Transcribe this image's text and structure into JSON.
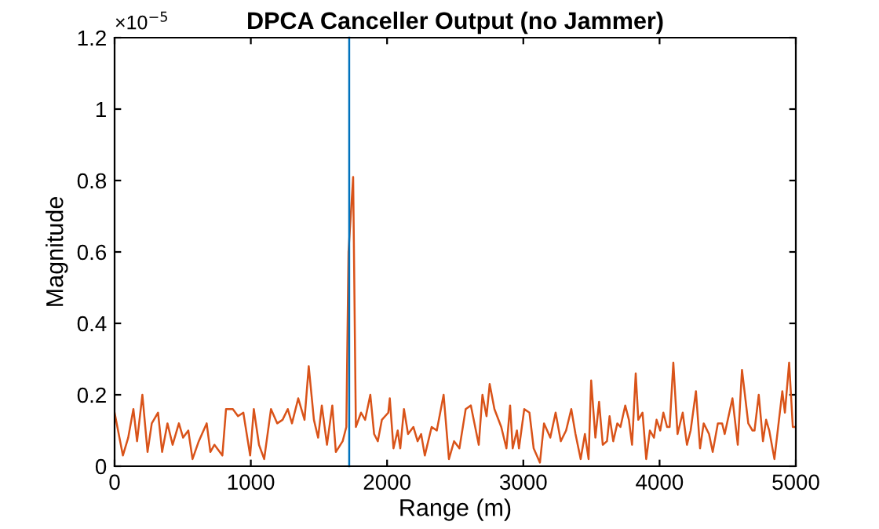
{
  "chart_data": {
    "type": "line",
    "title": "DPCA Canceller Output (no Jammer)",
    "xlabel": "Range (m)",
    "ylabel": "Magnitude",
    "annotations": [
      "×10$^{−5}$"
    ],
    "xlim": [
      0,
      5000
    ],
    "xticks": [
      0,
      1000,
      2000,
      3000,
      4000,
      5000
    ],
    "ylim": [
      0,
      1.2
    ],
    "yticks": [
      0,
      0.2,
      0.4,
      0.6,
      0.8,
      1,
      1.2
    ],
    "grid": false,
    "legend": false,
    "ref_lines": [
      {
        "axis": "x",
        "value": 1722,
        "color": "#0072bd"
      }
    ],
    "series": [
      {
        "color": "#d95319",
        "x": [
          0,
          61,
          100,
          138,
          165,
          204,
          242,
          273,
          319,
          349,
          388,
          426,
          472,
          503,
          541,
          572,
          618,
          676,
          703,
          733,
          791,
          818,
          868,
          906,
          945,
          995,
          1022,
          1060,
          1098,
          1148,
          1194,
          1233,
          1271,
          1302,
          1348,
          1394,
          1425,
          1463,
          1494,
          1521,
          1559,
          1598,
          1624,
          1674,
          1701,
          1717,
          1751,
          1771,
          1809,
          1839,
          1877,
          1905,
          1932,
          1962,
          2009,
          2020,
          2047,
          2078,
          2097,
          2124,
          2154,
          2193,
          2224,
          2250,
          2277,
          2327,
          2365,
          2415,
          2454,
          2492,
          2531,
          2577,
          2615,
          2673,
          2700,
          2730,
          2753,
          2788,
          2838,
          2876,
          2903,
          2922,
          2953,
          2968,
          3007,
          3045,
          3076,
          3122,
          3152,
          3198,
          3237,
          3275,
          3314,
          3352,
          3383,
          3421,
          3452,
          3479,
          3498,
          3529,
          3556,
          3583,
          3614,
          3633,
          3660,
          3690,
          3713,
          3748,
          3775,
          3798,
          3825,
          3844,
          3875,
          3902,
          3929,
          3959,
          3978,
          4005,
          4028,
          4055,
          4074,
          4101,
          4132,
          4170,
          4201,
          4228,
          4267,
          4297,
          4324,
          4363,
          4390,
          4428,
          4459,
          4478,
          4535,
          4574,
          4605,
          4651,
          4682,
          4697,
          4728,
          4759,
          4782,
          4805,
          4843,
          4901,
          4920,
          4951,
          4978,
          5000
        ],
        "values": [
          0.15,
          0.03,
          0.08,
          0.16,
          0.07,
          0.2,
          0.04,
          0.12,
          0.15,
          0.04,
          0.12,
          0.06,
          0.12,
          0.08,
          0.1,
          0.02,
          0.07,
          0.12,
          0.04,
          0.06,
          0.03,
          0.16,
          0.16,
          0.14,
          0.15,
          0.03,
          0.16,
          0.06,
          0.02,
          0.16,
          0.12,
          0.13,
          0.16,
          0.12,
          0.19,
          0.13,
          0.28,
          0.13,
          0.08,
          0.17,
          0.06,
          0.17,
          0.04,
          0.07,
          0.11,
          0.6,
          0.81,
          0.11,
          0.15,
          0.13,
          0.2,
          0.09,
          0.07,
          0.13,
          0.15,
          0.19,
          0.05,
          0.1,
          0.05,
          0.16,
          0.09,
          0.11,
          0.07,
          0.09,
          0.03,
          0.11,
          0.1,
          0.2,
          0.02,
          0.07,
          0.05,
          0.16,
          0.17,
          0.06,
          0.2,
          0.14,
          0.23,
          0.16,
          0.11,
          0.05,
          0.17,
          0.05,
          0.1,
          0.05,
          0.16,
          0.15,
          0.05,
          0.01,
          0.12,
          0.08,
          0.15,
          0.07,
          0.1,
          0.16,
          0.09,
          0.02,
          0.09,
          0.02,
          0.24,
          0.08,
          0.18,
          0.06,
          0.07,
          0.14,
          0.07,
          0.12,
          0.11,
          0.17,
          0.13,
          0.06,
          0.26,
          0.13,
          0.15,
          0.02,
          0.1,
          0.08,
          0.13,
          0.1,
          0.15,
          0.11,
          0.11,
          0.29,
          0.09,
          0.15,
          0.06,
          0.1,
          0.21,
          0.05,
          0.12,
          0.09,
          0.04,
          0.12,
          0.12,
          0.09,
          0.19,
          0.06,
          0.27,
          0.12,
          0.1,
          0.1,
          0.2,
          0.07,
          0.13,
          0.1,
          0.02,
          0.21,
          0.15,
          0.29,
          0.11,
          0.11
        ]
      }
    ]
  }
}
